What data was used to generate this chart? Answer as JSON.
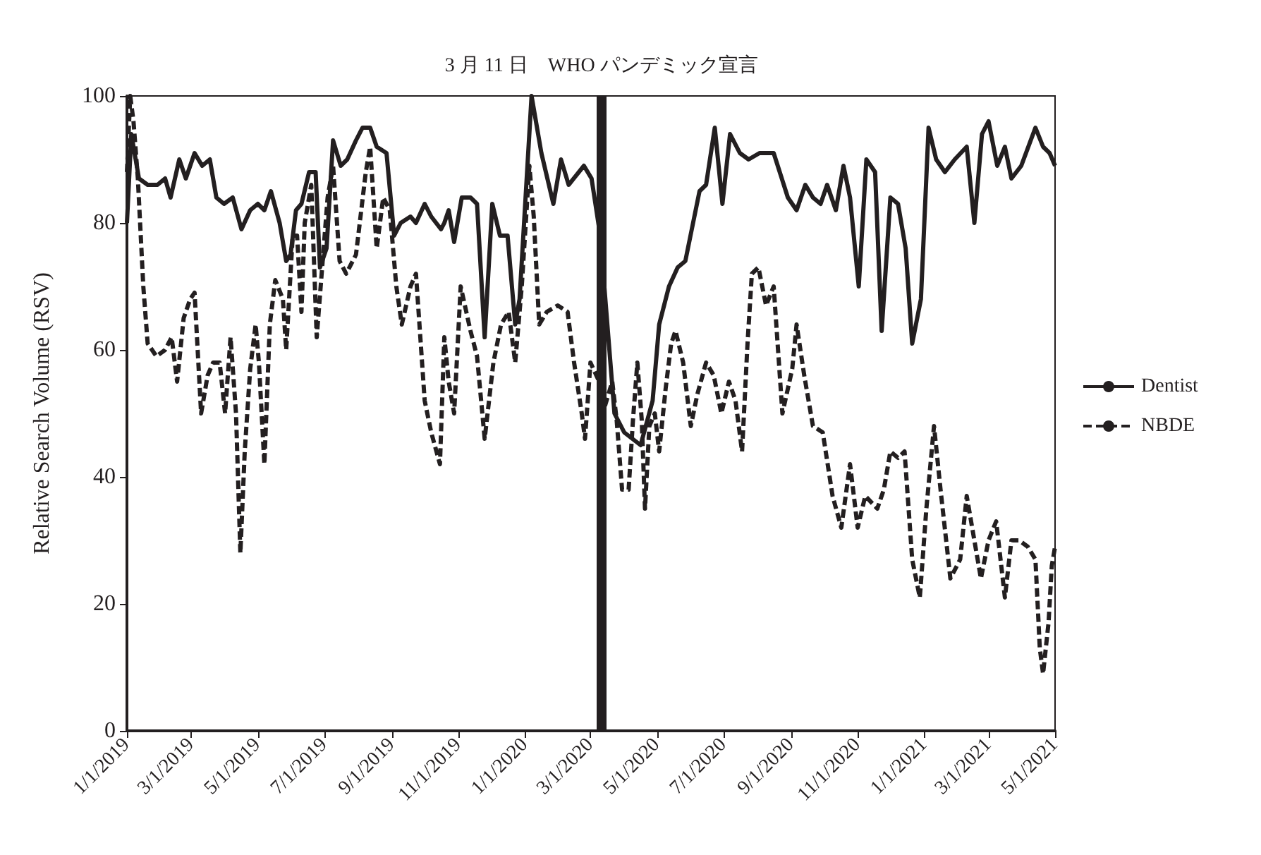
{
  "chart_data": {
    "type": "line",
    "ylabel": "Relative Search Volume (RSV)",
    "xlim": [
      "2019-01-01",
      "2021-05-01"
    ],
    "xticks": [
      {
        "value": "2019-01-01",
        "label": "1/1/2019"
      },
      {
        "value": "2019-03-01",
        "label": "3/1/2019"
      },
      {
        "value": "2019-05-01",
        "label": "5/1/2019"
      },
      {
        "value": "2019-07-01",
        "label": "7/1/2019"
      },
      {
        "value": "2019-09-01",
        "label": "9/1/2019"
      },
      {
        "value": "2019-11-01",
        "label": "11/1/2019"
      },
      {
        "value": "2020-01-01",
        "label": "1/1/2020"
      },
      {
        "value": "2020-03-01",
        "label": "3/1/2020"
      },
      {
        "value": "2020-05-01",
        "label": "5/1/2020"
      },
      {
        "value": "2020-07-01",
        "label": "7/1/2020"
      },
      {
        "value": "2020-09-01",
        "label": "9/1/2020"
      },
      {
        "value": "2020-11-01",
        "label": "11/1/2020"
      },
      {
        "value": "2021-01-01",
        "label": "1/1/2021"
      },
      {
        "value": "2021-03-01",
        "label": "3/1/2021"
      },
      {
        "value": "2021-05-01",
        "label": "5/1/2021"
      }
    ],
    "ylim": [
      0,
      100
    ],
    "yticks": [
      0,
      20,
      40,
      60,
      80,
      100
    ],
    "grid": false,
    "legend": "right",
    "marker": "none",
    "ref_lines": [
      {
        "axis": "x",
        "value": "2020-03-11",
        "label": "3 月 11 日　WHO パンデミック宣言",
        "color": "#231f20"
      }
    ],
    "series": [
      {
        "name": "Dentist",
        "color": "#231f20",
        "line_style": "solid",
        "x": [
          "2019-01-01",
          "2019-01-05",
          "2019-01-12",
          "2019-01-20",
          "2019-01-29",
          "2019-02-05",
          "2019-02-10",
          "2019-02-18",
          "2019-02-24",
          "2019-03-04",
          "2019-03-11",
          "2019-03-18",
          "2019-03-24",
          "2019-03-31",
          "2019-04-08",
          "2019-04-16",
          "2019-04-24",
          "2019-05-01",
          "2019-05-07",
          "2019-05-13",
          "2019-05-21",
          "2019-05-27",
          "2019-05-31",
          "2019-06-05",
          "2019-06-10",
          "2019-06-17",
          "2019-06-23",
          "2019-06-27",
          "2019-07-03",
          "2019-07-09",
          "2019-07-16",
          "2019-07-22",
          "2019-07-30",
          "2019-08-05",
          "2019-08-12",
          "2019-08-18",
          "2019-08-27",
          "2019-09-03",
          "2019-09-09",
          "2019-09-18",
          "2019-09-23",
          "2019-10-01",
          "2019-10-07",
          "2019-10-16",
          "2019-10-19",
          "2019-10-23",
          "2019-10-28",
          "2019-11-04",
          "2019-11-12",
          "2019-11-18",
          "2019-11-25",
          "2019-12-02",
          "2019-12-09",
          "2019-12-16",
          "2019-12-23",
          "2019-12-27",
          "2020-01-07",
          "2020-01-16",
          "2020-01-27",
          "2020-02-03",
          "2020-02-10",
          "2020-02-24",
          "2020-03-02",
          "2020-03-10",
          "2020-03-23",
          "2020-04-01",
          "2020-04-16",
          "2020-04-27",
          "2020-05-03",
          "2020-05-12",
          "2020-05-20",
          "2020-05-27",
          "2020-06-09",
          "2020-06-15",
          "2020-06-23",
          "2020-06-30",
          "2020-07-07",
          "2020-07-16",
          "2020-07-24",
          "2020-08-03",
          "2020-08-16",
          "2020-08-29",
          "2020-09-06",
          "2020-09-14",
          "2020-09-21",
          "2020-09-28",
          "2020-10-04",
          "2020-10-12",
          "2020-10-19",
          "2020-10-25",
          "2020-11-02",
          "2020-11-09",
          "2020-11-17",
          "2020-11-23",
          "2020-12-01",
          "2020-12-08",
          "2020-12-15",
          "2020-12-21",
          "2020-12-29",
          "2021-01-05",
          "2021-01-12",
          "2021-01-20",
          "2021-01-29",
          "2021-02-09",
          "2021-02-16",
          "2021-02-23",
          "2021-03-01",
          "2021-03-09",
          "2021-03-16",
          "2021-03-22",
          "2021-03-31",
          "2021-04-13",
          "2021-04-20",
          "2021-04-26",
          "2021-05-01"
        ],
        "values": [
          80,
          94,
          87,
          86,
          86,
          87,
          84,
          90,
          87,
          91,
          89,
          90,
          84,
          83,
          84,
          79,
          82,
          83,
          82,
          85,
          80,
          74,
          75,
          82,
          83,
          88,
          88,
          73,
          76,
          93,
          89,
          90,
          93,
          95,
          95,
          92,
          91,
          78,
          80,
          81,
          80,
          83,
          81,
          79,
          80,
          82,
          77,
          84,
          84,
          83,
          62,
          83,
          78,
          78,
          64,
          68,
          100,
          91,
          83,
          90,
          86,
          89,
          87,
          78,
          50,
          47,
          45,
          52,
          64,
          70,
          73,
          74,
          85,
          86,
          95,
          83,
          94,
          91,
          90,
          91,
          91,
          84,
          82,
          86,
          84,
          83,
          86,
          82,
          89,
          84,
          70,
          90,
          88,
          63,
          84,
          83,
          76,
          61,
          68,
          95,
          90,
          88,
          90,
          92,
          80,
          94,
          96,
          89,
          92,
          87,
          89,
          95,
          92,
          91,
          89
        ]
      },
      {
        "name": "NBDE",
        "color": "#231f20",
        "line_style": "dashed",
        "x": [
          "2019-01-01",
          "2019-01-04",
          "2019-01-07",
          "2019-01-11",
          "2019-01-16",
          "2019-01-20",
          "2019-01-28",
          "2019-02-05",
          "2019-02-11",
          "2019-02-16",
          "2019-02-22",
          "2019-02-28",
          "2019-03-04",
          "2019-03-10",
          "2019-03-16",
          "2019-03-21",
          "2019-03-27",
          "2019-04-01",
          "2019-04-06",
          "2019-04-11",
          "2019-04-15",
          "2019-04-19",
          "2019-04-24",
          "2019-04-29",
          "2019-05-02",
          "2019-05-07",
          "2019-05-12",
          "2019-05-17",
          "2019-05-24",
          "2019-05-27",
          "2019-06-02",
          "2019-06-06",
          "2019-06-10",
          "2019-06-13",
          "2019-06-19",
          "2019-06-24",
          "2019-06-29",
          "2019-07-04",
          "2019-07-09",
          "2019-07-15",
          "2019-07-21",
          "2019-07-30",
          "2019-08-08",
          "2019-08-12",
          "2019-08-18",
          "2019-08-24",
          "2019-08-30",
          "2019-09-05",
          "2019-09-10",
          "2019-09-18",
          "2019-09-23",
          "2019-10-01",
          "2019-10-07",
          "2019-10-15",
          "2019-10-19",
          "2019-10-23",
          "2019-10-28",
          "2019-11-03",
          "2019-11-12",
          "2019-11-18",
          "2019-11-25",
          "2019-12-03",
          "2019-12-10",
          "2019-12-17",
          "2019-12-23",
          "2019-12-29",
          "2020-01-05",
          "2020-01-09",
          "2020-01-14",
          "2020-01-21",
          "2020-01-31",
          "2020-02-09",
          "2020-02-15",
          "2020-02-22",
          "2020-02-25",
          "2020-03-01",
          "2020-03-09",
          "2020-03-14",
          "2020-03-21",
          "2020-03-25",
          "2020-03-30",
          "2020-04-05",
          "2020-04-09",
          "2020-04-13",
          "2020-04-17",
          "2020-04-20",
          "2020-04-24",
          "2020-04-29",
          "2020-05-03",
          "2020-05-09",
          "2020-05-14",
          "2020-05-18",
          "2020-05-25",
          "2020-06-01",
          "2020-06-07",
          "2020-06-15",
          "2020-06-22",
          "2020-06-29",
          "2020-07-06",
          "2020-07-12",
          "2020-07-18",
          "2020-07-23",
          "2020-07-27",
          "2020-08-02",
          "2020-08-09",
          "2020-08-16",
          "2020-08-24",
          "2020-09-02",
          "2020-09-06",
          "2020-09-13",
          "2020-09-21",
          "2020-09-30",
          "2020-10-09",
          "2020-10-17",
          "2020-10-25",
          "2020-11-01",
          "2020-11-08",
          "2020-11-19",
          "2020-11-25",
          "2020-12-01",
          "2020-12-08",
          "2020-12-14",
          "2020-12-21",
          "2020-12-28",
          "2021-01-03",
          "2021-01-10",
          "2021-01-16",
          "2021-01-25",
          "2021-02-03",
          "2021-02-09",
          "2021-02-16",
          "2021-02-22",
          "2021-03-01",
          "2021-03-08",
          "2021-03-16",
          "2021-03-22",
          "2021-03-29",
          "2021-04-06",
          "2021-04-13",
          "2021-04-17",
          "2021-04-20",
          "2021-04-25",
          "2021-04-28",
          "2021-05-01"
        ],
        "values": [
          88,
          100,
          96,
          87,
          70,
          61,
          59,
          60,
          62,
          55,
          65,
          68,
          69,
          50,
          56,
          58,
          58,
          50,
          62,
          50,
          28,
          44,
          57,
          64,
          58,
          42,
          64,
          71,
          68,
          60,
          78,
          78,
          66,
          80,
          86,
          62,
          73,
          84,
          89,
          74,
          72,
          75,
          88,
          92,
          76,
          84,
          82,
          70,
          64,
          70,
          72,
          52,
          47,
          42,
          62,
          55,
          50,
          70,
          63,
          59,
          46,
          58,
          64,
          66,
          58,
          70,
          89,
          81,
          64,
          66,
          67,
          66,
          58,
          50,
          46,
          58,
          55,
          51,
          55,
          49,
          38,
          38,
          49,
          58,
          49,
          35,
          48,
          50,
          44,
          54,
          61,
          63,
          58,
          48,
          53,
          58,
          56,
          50,
          55,
          52,
          44,
          61,
          72,
          73,
          67,
          70,
          50,
          57,
          64,
          56,
          48,
          47,
          37,
          32,
          42,
          32,
          37,
          35,
          38,
          44,
          43,
          44,
          27,
          21,
          35,
          48,
          38,
          24,
          27,
          37,
          30,
          24,
          30,
          33,
          21,
          30,
          30,
          29,
          27,
          13,
          9,
          17,
          26,
          29
        ]
      }
    ]
  }
}
